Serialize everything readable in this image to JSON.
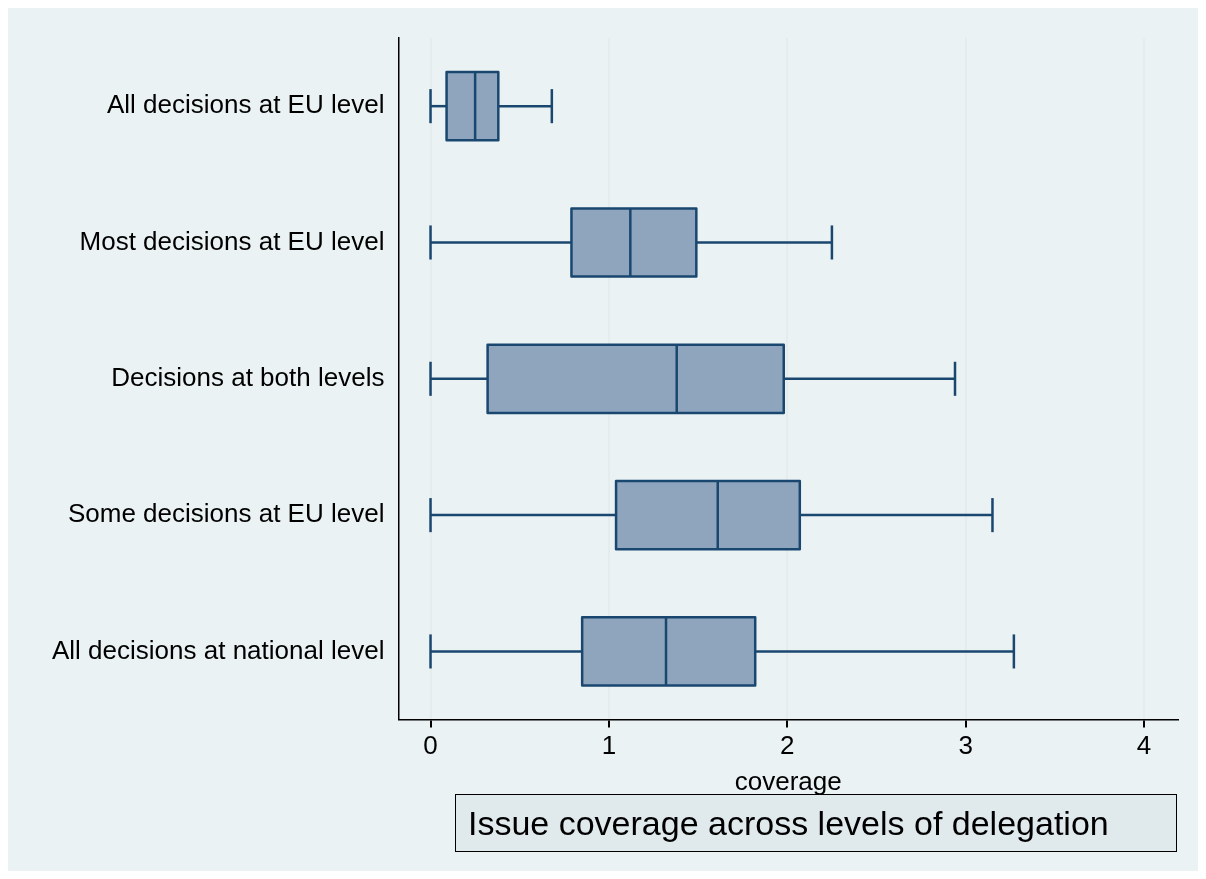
{
  "chart_data": {
    "type": "box",
    "title": "Issue coverage across levels of delegation",
    "xlabel": "coverage",
    "orientation": "horizontal",
    "categories": [
      "All decisions at EU level",
      "Most decisions at EU level",
      "Decisions at both levels",
      "Some decisions at EU level",
      "All decisions at national level"
    ],
    "color": "#8ea5bd",
    "boxes": [
      {
        "low": 0,
        "q1": 0.09,
        "median": 0.25,
        "q3": 0.38,
        "high": 0.68
      },
      {
        "low": 0,
        "q1": 0.79,
        "median": 1.12,
        "q3": 1.49,
        "high": 2.25
      },
      {
        "low": 0,
        "q1": 0.32,
        "median": 1.38,
        "q3": 1.98,
        "high": 2.94
      },
      {
        "low": 0,
        "q1": 1.04,
        "median": 1.61,
        "q3": 2.07,
        "high": 3.15
      },
      {
        "low": 0,
        "q1": 0.85,
        "median": 1.32,
        "q3": 1.82,
        "high": 3.27
      }
    ],
    "xlim": [
      -0.18,
      4.19
    ],
    "xticks": [
      0,
      1,
      2,
      3,
      4
    ],
    "grid": "x"
  }
}
